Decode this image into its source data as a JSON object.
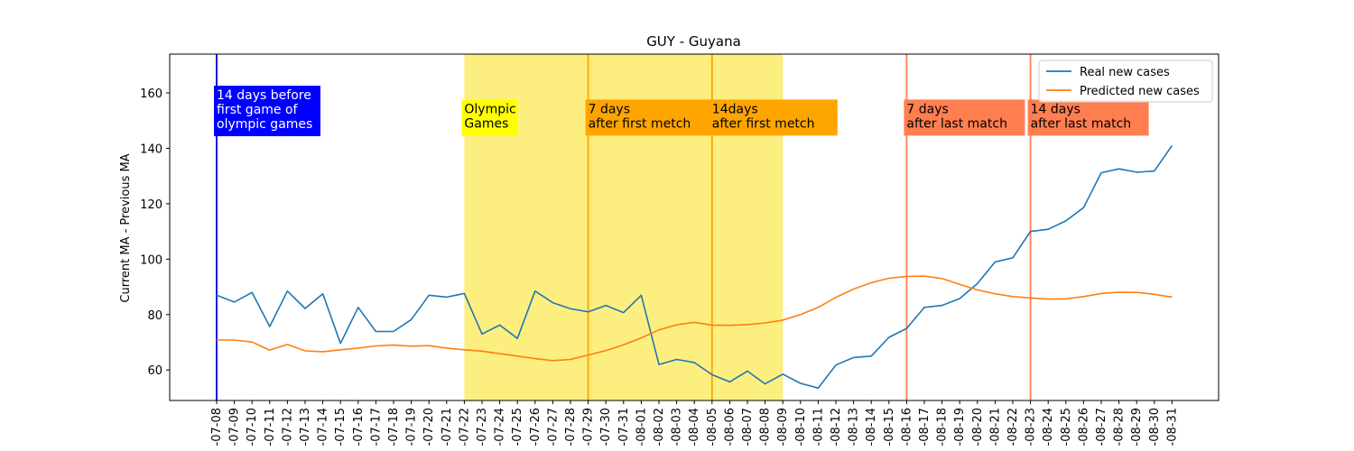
{
  "chart_data": {
    "type": "line",
    "title": "GUY - Guyana",
    "ylabel": "Current MA - Previous MA",
    "xlabel": "",
    "ylim": [
      49,
      174
    ],
    "yticks": [
      60,
      80,
      100,
      120,
      140,
      160
    ],
    "grid": false,
    "legend_position": "top-right",
    "x": [
      "2021-07-08",
      "2021-07-09",
      "2021-07-10",
      "2021-07-11",
      "2021-07-12",
      "2021-07-13",
      "2021-07-14",
      "2021-07-15",
      "2021-07-16",
      "2021-07-17",
      "2021-07-18",
      "2021-07-19",
      "2021-07-20",
      "2021-07-21",
      "2021-07-22",
      "2021-07-23",
      "2021-07-24",
      "2021-07-25",
      "2021-07-26",
      "2021-07-27",
      "2021-07-28",
      "2021-07-29",
      "2021-07-30",
      "2021-07-31",
      "2021-08-01",
      "2021-08-02",
      "2021-08-03",
      "2021-08-04",
      "2021-08-05",
      "2021-08-06",
      "2021-08-07",
      "2021-08-08",
      "2021-08-09",
      "2021-08-10",
      "2021-08-11",
      "2021-08-12",
      "2021-08-13",
      "2021-08-14",
      "2021-08-15",
      "2021-08-16",
      "2021-08-17",
      "2021-08-18",
      "2021-08-19",
      "2021-08-20",
      "2021-08-21",
      "2021-08-22",
      "2021-08-23",
      "2021-08-24",
      "2021-08-25",
      "2021-08-26",
      "2021-08-27",
      "2021-08-28",
      "2021-08-29",
      "2021-08-30",
      "2021-08-31"
    ],
    "tick_labels": [
      "-07-08",
      "-07-09",
      "-07-10",
      "-07-11",
      "-07-12",
      "-07-13",
      "-07-14",
      "-07-15",
      "-07-16",
      "-07-17",
      "-07-18",
      "-07-19",
      "-07-20",
      "-07-21",
      "-07-22",
      "-07-23",
      "-07-24",
      "-07-25",
      "-07-26",
      "-07-27",
      "-07-28",
      "-07-29",
      "-07-30",
      "-07-31",
      "-08-01",
      "-08-02",
      "-08-03",
      "-08-04",
      "-08-05",
      "-08-06",
      "-08-07",
      "-08-08",
      "-08-09",
      "-08-10",
      "-08-11",
      "-08-12",
      "-08-13",
      "-08-14",
      "-08-15",
      "-08-16",
      "-08-17",
      "-08-18",
      "-08-19",
      "-08-20",
      "-08-21",
      "-08-22",
      "-08-23",
      "-08-24",
      "-08-25",
      "-08-26",
      "-08-27",
      "-08-28",
      "-08-29",
      "-08-30",
      "-08-31"
    ],
    "series": [
      {
        "name": "Real new cases",
        "color": "#1f77b4",
        "values": [
          87,
          84.5,
          88,
          75.7,
          88.5,
          82.2,
          87.5,
          69.6,
          82.6,
          73.9,
          73.9,
          78.2,
          87,
          86.3,
          87.6,
          73,
          76.2,
          71.4,
          88.5,
          84.3,
          82.1,
          81,
          83.3,
          80.7,
          87,
          62,
          63.8,
          62.7,
          58.3,
          55.7,
          59.6,
          55,
          58.5,
          55.2,
          53.5,
          61.8,
          64.5,
          65,
          71.8,
          75,
          82.6,
          83.3,
          85.8,
          91.2,
          99,
          100.5,
          110,
          110.8,
          113.8,
          118.6,
          131.2,
          132.6,
          131.4,
          131.8,
          141
        ]
      },
      {
        "name": "Predicted new cases",
        "color": "#ff7f0e",
        "values": [
          70.8,
          70.8,
          70.1,
          67.2,
          69.2,
          66.9,
          66.6,
          67.3,
          67.9,
          68.7,
          69,
          68.6,
          68.8,
          67.9,
          67.3,
          66.8,
          65.9,
          65,
          64.1,
          63.4,
          63.8,
          65.4,
          67,
          69.1,
          71.6,
          74.5,
          76.3,
          77.2,
          76.2,
          76.1,
          76.4,
          77,
          78,
          80,
          82.6,
          86.2,
          89.2,
          91.5,
          93.1,
          93.8,
          93.9,
          93,
          90.9,
          88.9,
          87.5,
          86.5,
          86,
          85.6,
          85.7,
          86.5,
          87.6,
          88.1,
          88,
          87.3,
          86.3
        ]
      }
    ],
    "shaded_region": {
      "from": "2021-07-22",
      "to": "2021-08-09",
      "color": "#fdef7f"
    },
    "vertical_lines": [
      {
        "x": "2021-07-08",
        "color": "#0000dd",
        "label": [
          "14 days before",
          "first game of",
          "olympic games"
        ],
        "label_bg": "#0000ff",
        "label_color": "#ffffff",
        "label_y": 160
      },
      {
        "x": "2021-07-22",
        "color": null,
        "label": [
          "Olympic",
          "Games"
        ],
        "label_bg": "#ffff00",
        "label_color": "#000000",
        "label_y": 155
      },
      {
        "x": "2021-07-29",
        "color": "#ffa500",
        "label": [
          "7 days",
          "after first metch"
        ],
        "label_bg": "#ffa500",
        "label_color": "#000000",
        "label_y": 155
      },
      {
        "x": "2021-08-05",
        "color": "#ffa500",
        "label": [
          "14days",
          "after first metch"
        ],
        "label_bg": "#ffa500",
        "label_color": "#000000",
        "label_y": 155
      },
      {
        "x": "2021-08-16",
        "color": "#ff7f50",
        "label": [
          "7 days",
          "after last match"
        ],
        "label_bg": "#ff7f50",
        "label_color": "#000000",
        "label_y": 155
      },
      {
        "x": "2021-08-23",
        "color": "#ff7f50",
        "label": [
          "14 days",
          "after last match"
        ],
        "label_bg": "#ff7f50",
        "label_color": "#000000",
        "label_y": 155
      }
    ]
  }
}
